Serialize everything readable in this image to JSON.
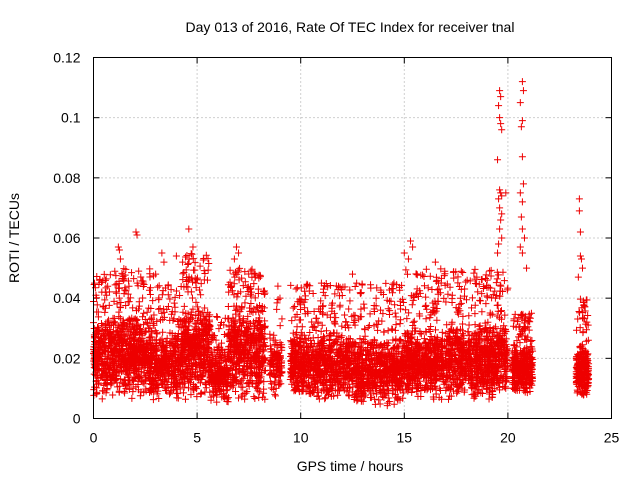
{
  "chart_data": {
    "type": "scatter",
    "title": "Day 013 of 2016, Rate Of TEC Index for receiver tnal",
    "xlabel": "GPS time / hours",
    "ylabel": "ROTI / TECUs",
    "xlim": [
      0,
      25
    ],
    "ylim": [
      0,
      0.12
    ],
    "xticks": [
      0,
      5,
      10,
      15,
      20,
      25
    ],
    "yticks": [
      0,
      0.02,
      0.04,
      0.06,
      0.08,
      0.1,
      0.12
    ],
    "ytick_labels": [
      "0",
      "0.02",
      "0.04",
      "0.06",
      "0.08",
      "0.1",
      "0.12"
    ],
    "grid": true,
    "marker": "+",
    "marker_color": "#ee0000",
    "series": [
      {
        "name": "ROTI",
        "density_segments": [
          {
            "x": [
              0.0,
              2.9
            ],
            "base": [
              0.006,
              0.035
            ],
            "sparse_max": 0.05,
            "n": 950
          },
          {
            "x": [
              2.9,
              4.2
            ],
            "base": [
              0.006,
              0.03
            ],
            "sparse_max": 0.045,
            "n": 350
          },
          {
            "x": [
              4.2,
              5.6
            ],
            "base": [
              0.006,
              0.04
            ],
            "sparse_max": 0.055,
            "n": 480
          },
          {
            "x": [
              5.6,
              6.5
            ],
            "base": [
              0.004,
              0.025
            ],
            "sparse_max": 0.035,
            "n": 250
          },
          {
            "x": [
              6.5,
              8.3
            ],
            "base": [
              0.005,
              0.04
            ],
            "sparse_max": 0.05,
            "n": 560
          },
          {
            "x": [
              8.5,
              9.1
            ],
            "base": [
              0.007,
              0.03
            ],
            "sparse_max": 0.04,
            "n": 120
          },
          {
            "x": [
              9.5,
              12.5
            ],
            "base": [
              0.006,
              0.03
            ],
            "sparse_max": 0.045,
            "n": 850
          },
          {
            "x": [
              12.5,
              15.0
            ],
            "base": [
              0.004,
              0.028
            ],
            "sparse_max": 0.045,
            "n": 700
          },
          {
            "x": [
              15.0,
              17.0
            ],
            "base": [
              0.006,
              0.03
            ],
            "sparse_max": 0.05,
            "n": 600
          },
          {
            "x": [
              17.0,
              20.0
            ],
            "base": [
              0.006,
              0.033
            ],
            "sparse_max": 0.05,
            "n": 900
          },
          {
            "x": [
              20.2,
              21.2
            ],
            "base": [
              0.008,
              0.025
            ],
            "sparse_max": 0.035,
            "n": 360
          },
          {
            "x": [
              23.3,
              23.9
            ],
            "base": [
              0.007,
              0.025
            ],
            "sparse_max": 0.04,
            "n": 260
          }
        ],
        "points": [
          [
            0.05,
            0.045
          ],
          [
            0.4,
            0.042
          ],
          [
            1.2,
            0.057
          ],
          [
            1.25,
            0.056
          ],
          [
            1.3,
            0.053
          ],
          [
            2.05,
            0.062
          ],
          [
            2.1,
            0.061
          ],
          [
            2.4,
            0.045
          ],
          [
            3.0,
            0.048
          ],
          [
            3.3,
            0.055
          ],
          [
            3.4,
            0.052
          ],
          [
            4.0,
            0.054
          ],
          [
            4.3,
            0.052
          ],
          [
            4.6,
            0.063
          ],
          [
            4.8,
            0.057
          ],
          [
            5.5,
            0.046
          ],
          [
            6.9,
            0.057
          ],
          [
            7.0,
            0.055
          ],
          [
            6.8,
            0.053
          ],
          [
            7.8,
            0.047
          ],
          [
            8.9,
            0.044
          ],
          [
            9.0,
            0.04
          ],
          [
            11.0,
            0.045
          ],
          [
            12.5,
            0.048
          ],
          [
            12.7,
            0.045
          ],
          [
            14.5,
            0.045
          ],
          [
            15.0,
            0.055
          ],
          [
            15.3,
            0.059
          ],
          [
            15.4,
            0.057
          ],
          [
            15.2,
            0.053
          ],
          [
            16.5,
            0.052
          ],
          [
            18.5,
            0.047
          ],
          [
            19.0,
            0.046
          ],
          [
            19.6,
            0.109
          ],
          [
            19.65,
            0.107
          ],
          [
            19.55,
            0.104
          ],
          [
            19.6,
            0.1
          ],
          [
            19.65,
            0.098
          ],
          [
            19.7,
            0.096
          ],
          [
            19.5,
            0.086
          ],
          [
            19.6,
            0.076
          ],
          [
            19.65,
            0.075
          ],
          [
            19.7,
            0.074
          ],
          [
            19.55,
            0.073
          ],
          [
            19.6,
            0.07
          ],
          [
            19.7,
            0.068
          ],
          [
            19.65,
            0.066
          ],
          [
            19.6,
            0.063
          ],
          [
            19.7,
            0.06
          ],
          [
            19.55,
            0.058
          ],
          [
            19.9,
            0.075
          ],
          [
            19.5,
            0.055
          ],
          [
            20.7,
            0.112
          ],
          [
            20.75,
            0.109
          ],
          [
            20.6,
            0.105
          ],
          [
            20.7,
            0.099
          ],
          [
            20.65,
            0.097
          ],
          [
            20.7,
            0.087
          ],
          [
            20.75,
            0.078
          ],
          [
            20.6,
            0.075
          ],
          [
            20.7,
            0.072
          ],
          [
            20.65,
            0.067
          ],
          [
            20.7,
            0.063
          ],
          [
            20.8,
            0.06
          ],
          [
            20.6,
            0.057
          ],
          [
            20.7,
            0.055
          ],
          [
            20.9,
            0.05
          ],
          [
            23.45,
            0.073
          ],
          [
            23.45,
            0.069
          ],
          [
            23.5,
            0.062
          ],
          [
            23.5,
            0.054
          ],
          [
            23.55,
            0.053
          ],
          [
            23.6,
            0.05
          ],
          [
            23.4,
            0.047
          ]
        ]
      }
    ]
  }
}
